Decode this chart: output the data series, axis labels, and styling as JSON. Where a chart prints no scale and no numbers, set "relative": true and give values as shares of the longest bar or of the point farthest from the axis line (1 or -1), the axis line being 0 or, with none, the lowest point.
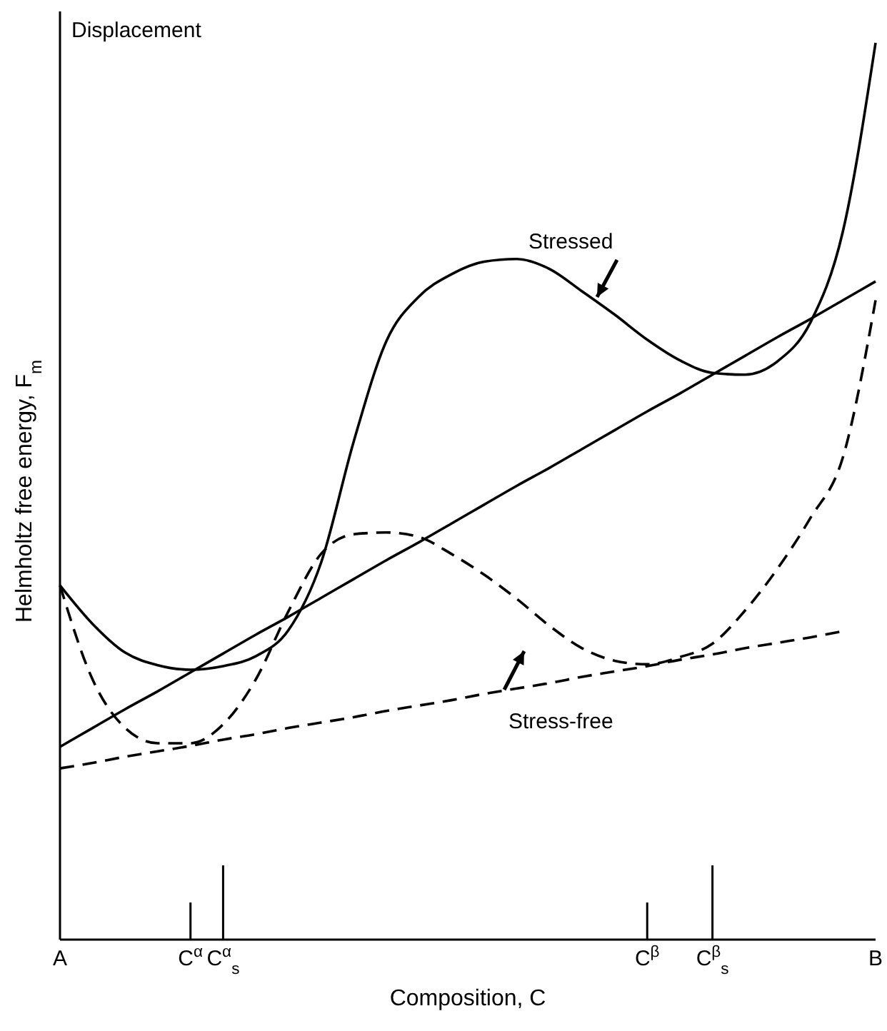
{
  "chart_data": {
    "type": "line",
    "relative": true,
    "xlabel": "Composition, C",
    "ylabel": "Helmholtz free energy, F$_{m}$",
    "categories": [
      "A",
      null,
      null,
      null,
      "C$^{α}$",
      "C$^{α}$$_{s}$",
      null,
      null,
      null,
      null,
      null,
      null,
      null,
      null,
      null,
      null,
      null,
      null,
      "C$^{β}$",
      null,
      "C$^{β}$$_{s}$",
      null,
      null,
      null,
      null,
      "B"
    ],
    "tick_labels": "x",
    "series": [
      {
        "color": "#000000",
        "line_style": "solid",
        "values": [
          0.395,
          0.352,
          0.32,
          0.306,
          0.301,
          0.305,
          0.316,
          0.345,
          0.42,
          0.555,
          0.667,
          0.717,
          0.742,
          0.756,
          0.759,
          0.748,
          0.723,
          0.697,
          0.669,
          0.646,
          0.632,
          0.63,
          0.645,
          0.688,
          0.79,
          1
        ]
      },
      {
        "color": "#000000",
        "line_style": "solid",
        "values": [
          0.215,
          0.236,
          0.257,
          0.277,
          0.298,
          0.319,
          0.34,
          0.36,
          0.381,
          0.402,
          0.423,
          0.443,
          0.464,
          0.485,
          0.506,
          0.526,
          0.547,
          0.568,
          0.589,
          0.609,
          0.63,
          0.651,
          0.672,
          0.692,
          0.713,
          0.734
        ]
      },
      {
        "color": "#000000",
        "line_style": "dashed",
        "values": [
          0.395,
          0.29,
          0.236,
          0.219,
          0.219,
          0.24,
          0.29,
          0.366,
          0.43,
          0.452,
          0.454,
          0.449,
          0.43,
          0.407,
          0.38,
          0.35,
          0.325,
          0.311,
          0.307,
          0.315,
          0.33,
          0.367,
          0.414,
          0.47,
          0.538,
          0.713
        ]
      },
      {
        "color": "#000000",
        "line_style": "dashed",
        "values": [
          0.191,
          0.197,
          0.204,
          0.21,
          0.216,
          0.223,
          0.229,
          0.236,
          0.242,
          0.248,
          0.255,
          0.261,
          0.267,
          0.274,
          0.28,
          0.286,
          0.293,
          0.299,
          0.305,
          0.312,
          0.318,
          0.325,
          0.331,
          0.337,
          0.344,
          null
        ]
      }
    ],
    "annotations": [
      "Displacement",
      "Stressed",
      "Stress-free"
    ]
  }
}
